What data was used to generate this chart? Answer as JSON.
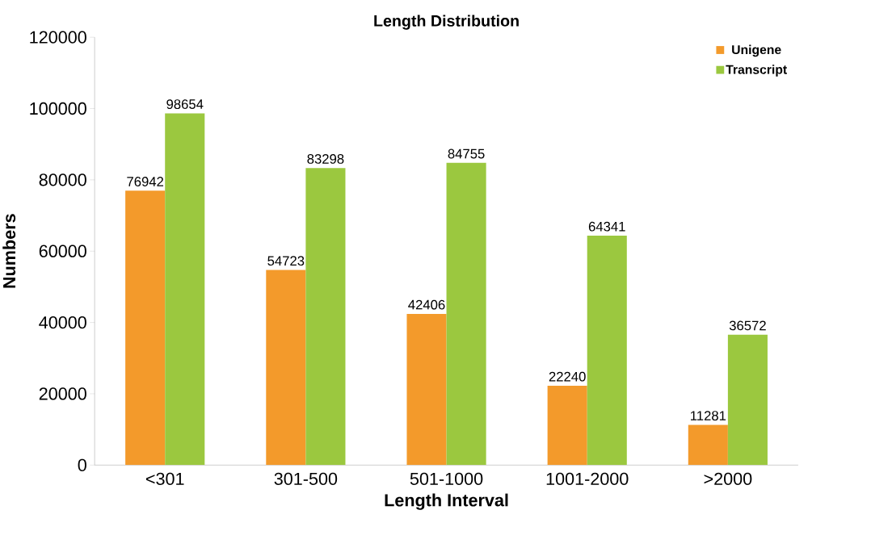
{
  "chart_data": {
    "type": "bar",
    "title": "Length Distribution",
    "xlabel": "Length Interval",
    "ylabel": "Numbers",
    "categories": [
      "<301",
      "301-500",
      "501-1000",
      "1001-2000",
      ">2000"
    ],
    "series": [
      {
        "name": "Unigene",
        "color": "#f39a2b",
        "values": [
          76942,
          54723,
          42406,
          22240,
          11281
        ]
      },
      {
        "name": "Transcript",
        "color": "#9bc83f",
        "values": [
          98654,
          83298,
          84755,
          64341,
          36572
        ]
      }
    ],
    "ylim": [
      0,
      120000
    ],
    "yticks": [
      0,
      20000,
      40000,
      60000,
      80000,
      100000,
      120000
    ],
    "data_labels": true,
    "legend": "top right",
    "grid": false
  }
}
